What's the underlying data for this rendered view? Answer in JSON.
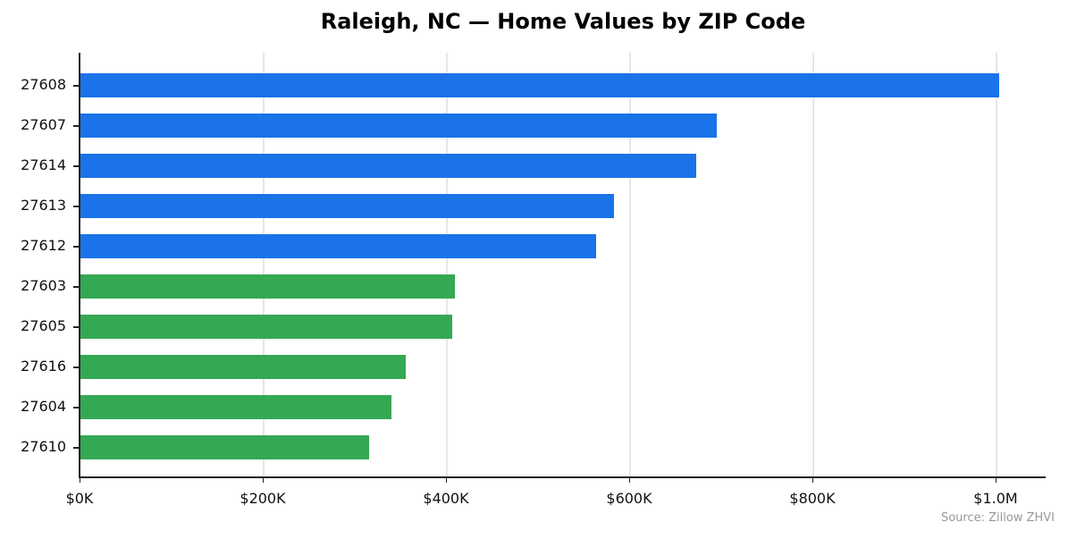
{
  "chart_data": {
    "type": "bar",
    "orientation": "horizontal",
    "title": "Raleigh, NC — Home Values by ZIP Code",
    "xlabel": "",
    "ylabel": "",
    "categories": [
      "27608",
      "27607",
      "27614",
      "27613",
      "27612",
      "27603",
      "27605",
      "27616",
      "27604",
      "27610"
    ],
    "values": [
      1004000,
      696000,
      673000,
      583000,
      564000,
      410000,
      407000,
      356000,
      340000,
      316000
    ],
    "colors": [
      "#1a73e8",
      "#1a73e8",
      "#1a73e8",
      "#1a73e8",
      "#1a73e8",
      "#34a853",
      "#34a853",
      "#34a853",
      "#34a853",
      "#34a853"
    ],
    "xlim": [
      0,
      1055000
    ],
    "xticks": [
      0,
      200000,
      400000,
      600000,
      800000,
      1000000
    ],
    "xtick_labels": [
      "$0K",
      "$200K",
      "$400K",
      "$600K",
      "$800K",
      "$1.0M"
    ],
    "grid": "x",
    "source": "Source: Zillow ZHVI"
  }
}
